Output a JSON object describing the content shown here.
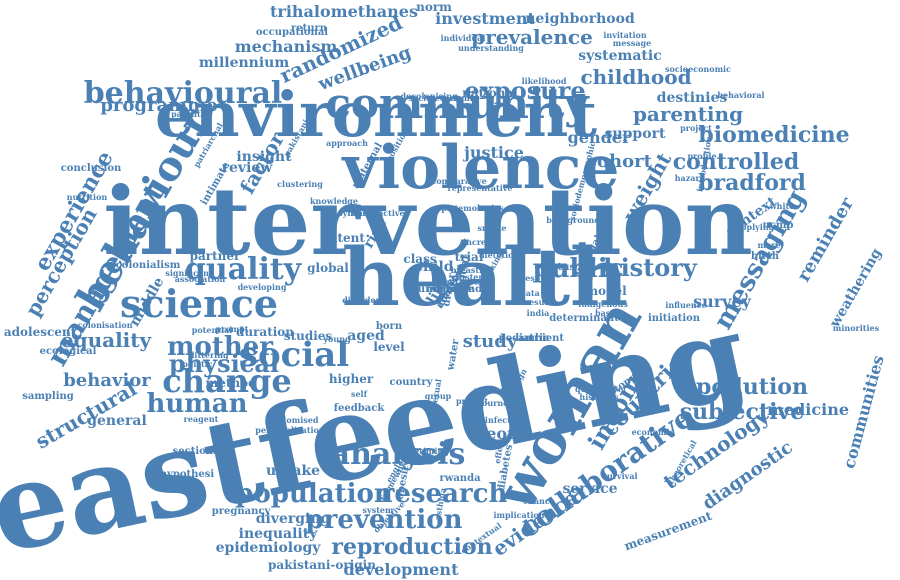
{
  "color": "#4a80b4",
  "words": [
    {
      "text": "breastfeeding",
      "rot": -12
    },
    {
      "text": "intervention",
      "rot": 0
    },
    {
      "text": "health",
      "rot": 0
    },
    {
      "text": "environment",
      "rot": 0
    },
    {
      "text": "violence",
      "rot": 0
    },
    {
      "text": "community",
      "rot": 0
    },
    {
      "text": "woman",
      "rot": -60
    },
    {
      "text": "behaviour",
      "rot": -60
    },
    {
      "text": "science",
      "rot": 0
    },
    {
      "text": "social",
      "rot": 0
    },
    {
      "text": "change",
      "rot": 0
    },
    {
      "text": "population",
      "rot": 0
    },
    {
      "text": "research",
      "rot": 0
    },
    {
      "text": "prevention",
      "rot": 0
    },
    {
      "text": "reproduction",
      "rot": 0
    },
    {
      "text": "analysis",
      "rot": 0
    },
    {
      "text": "collaborative",
      "rot": -35
    },
    {
      "text": "quality",
      "rot": 0
    },
    {
      "text": "management",
      "rot": -60
    },
    {
      "text": "behavioural",
      "rot": 0
    },
    {
      "text": "public",
      "rot": 0
    },
    {
      "text": "history",
      "rot": 0
    },
    {
      "text": "messaging",
      "rot": -60
    },
    {
      "text": "human",
      "rot": 0
    },
    {
      "text": "income",
      "rot": -60
    },
    {
      "text": "countrie",
      "rot": -45
    },
    {
      "text": "technology",
      "rot": -35
    },
    {
      "text": "mother",
      "rot": 0
    },
    {
      "text": "physical",
      "rot": 0
    },
    {
      "text": "subjective",
      "rot": 0
    },
    {
      "text": "exposure",
      "rot": 0
    },
    {
      "text": "pollution",
      "rot": 0
    },
    {
      "text": "biomedicine",
      "rot": 0
    },
    {
      "text": "controlled",
      "rot": 0
    },
    {
      "text": "bradford",
      "rot": 0
    },
    {
      "text": "childhood",
      "rot": 0
    },
    {
      "text": "parenting",
      "rot": 0
    },
    {
      "text": "randomized",
      "rot": -25
    },
    {
      "text": "wellbeing",
      "rot": -20
    },
    {
      "text": "prevalence",
      "rot": 0
    },
    {
      "text": "trihalomethanes",
      "rot": 0
    },
    {
      "text": "investment",
      "rot": 0
    },
    {
      "text": "neighborhood",
      "rot": 0
    },
    {
      "text": "mechanism",
      "rot": 0
    },
    {
      "text": "millennium",
      "rot": 0
    },
    {
      "text": "programme",
      "rot": 0
    },
    {
      "text": "experience",
      "rot": -60
    },
    {
      "text": "perception",
      "rot": -60
    },
    {
      "text": "equality",
      "rot": 0
    },
    {
      "text": "behavior",
      "rot": 0
    },
    {
      "text": "structural",
      "rot": -30
    },
    {
      "text": "general",
      "rot": 0
    },
    {
      "text": "uptake",
      "rot": 0
    },
    {
      "text": "diverging",
      "rot": 0
    },
    {
      "text": "inequality",
      "rot": 0
    },
    {
      "text": "epidemiology",
      "rot": 0
    },
    {
      "text": "development",
      "rot": 0
    },
    {
      "text": "pakistani-origin",
      "rot": 0
    },
    {
      "text": "evidence",
      "rot": -35
    },
    {
      "text": "service",
      "rot": 0
    },
    {
      "text": "diagnostic",
      "rot": -35
    },
    {
      "text": "measurement",
      "rot": -20
    },
    {
      "text": "communities",
      "rot": -75
    },
    {
      "text": "weathering",
      "rot": -60
    },
    {
      "text": "reminder",
      "rot": -60
    },
    {
      "text": "medicine",
      "rot": 0
    },
    {
      "text": "survey",
      "rot": 0
    },
    {
      "text": "study",
      "rot": 0
    },
    {
      "text": "theory",
      "rot": 0
    },
    {
      "text": "cohort",
      "rot": 0
    },
    {
      "text": "gender",
      "rot": 0
    },
    {
      "text": "weight",
      "rot": -60
    },
    {
      "text": "factor",
      "rot": -60
    },
    {
      "text": "insight",
      "rot": 0
    },
    {
      "text": "review",
      "rot": 0
    },
    {
      "text": "justice",
      "rot": 0
    },
    {
      "text": "support",
      "rot": 0
    },
    {
      "text": "systematic",
      "rot": 0
    },
    {
      "text": "national",
      "rot": 0
    },
    {
      "text": "destinies",
      "rot": 0
    },
    {
      "text": "context",
      "rot": -35
    },
    {
      "text": "latent",
      "rot": 0
    },
    {
      "text": "partner",
      "rot": 0
    },
    {
      "text": "global",
      "rot": 0
    },
    {
      "text": "class",
      "rot": 0
    },
    {
      "text": "child",
      "rot": 0
    },
    {
      "text": "trial",
      "rot": 0
    },
    {
      "text": "local",
      "rot": -80
    },
    {
      "text": "risk",
      "rot": -60
    },
    {
      "text": "life",
      "rot": -60
    },
    {
      "text": "aged",
      "rot": 0
    },
    {
      "text": "higher",
      "rot": 0
    },
    {
      "text": "level",
      "rot": 0
    },
    {
      "text": "method",
      "rot": 0
    },
    {
      "text": "studies",
      "rot": 0
    },
    {
      "text": "born",
      "rot": 0
    },
    {
      "text": "middle",
      "rot": -60
    },
    {
      "text": "sampling",
      "rot": 0
    },
    {
      "text": "adolescent",
      "rot": 0
    },
    {
      "text": "hypothesi",
      "rot": 0
    },
    {
      "text": "sectional",
      "rot": 0
    },
    {
      "text": "pregnancy",
      "rot": 0
    },
    {
      "text": "determinant",
      "rot": 0
    },
    {
      "text": "model",
      "rot": 0
    },
    {
      "text": "duration",
      "rot": 0
    },
    {
      "text": "rwanda",
      "rot": 0
    },
    {
      "text": "infection",
      "rot": 0
    },
    {
      "text": "design",
      "rot": -60
    },
    {
      "text": "primer",
      "rot": 0
    },
    {
      "text": "country",
      "rot": 0
    },
    {
      "text": "group",
      "rot": 0
    },
    {
      "text": "effect",
      "rot": -80
    },
    {
      "text": "diabetes",
      "rot": -80
    },
    {
      "text": "obesity",
      "rot": -80
    },
    {
      "text": "england",
      "rot": -60
    },
    {
      "text": "pediatric",
      "rot": 0
    },
    {
      "text": "ambient",
      "rot": 0
    },
    {
      "text": "norm",
      "rot": 0
    },
    {
      "text": "return",
      "rot": 0
    },
    {
      "text": "occupational",
      "rot": 0
    },
    {
      "text": "individual",
      "rot": 0
    },
    {
      "text": "understanding",
      "rot": 0
    },
    {
      "text": "invitation",
      "rot": 0
    },
    {
      "text": "message",
      "rot": 0
    },
    {
      "text": "socioeconomic",
      "rot": 0
    },
    {
      "text": "behavioral",
      "rot": 0
    },
    {
      "text": "colonisation",
      "rot": 0
    },
    {
      "text": "ecological",
      "rot": 0
    },
    {
      "text": "conclusion",
      "rot": 0
    },
    {
      "text": "intimate",
      "rot": -60
    },
    {
      "text": "patriarchal",
      "rot": -60
    },
    {
      "text": "clustering",
      "rot": 0
    },
    {
      "text": "approach",
      "rot": 0
    },
    {
      "text": "maternal",
      "rot": -60
    },
    {
      "text": "position",
      "rot": -60
    },
    {
      "text": "internal",
      "rot": -60
    },
    {
      "text": "increase",
      "rot": 0
    },
    {
      "text": "dietetic",
      "rot": 0
    },
    {
      "text": "smoke",
      "rot": 0
    },
    {
      "text": "drinking",
      "rot": -60
    },
    {
      "text": "cluster",
      "rot": 0
    },
    {
      "text": "status",
      "rot": 0
    },
    {
      "text": "test",
      "rot": 0
    },
    {
      "text": "data",
      "rot": 0
    },
    {
      "text": "result",
      "rot": 0
    },
    {
      "text": "india",
      "rot": 0
    },
    {
      "text": "birth",
      "rot": 0
    },
    {
      "text": "more",
      "rot": 0
    },
    {
      "text": "white",
      "rot": 0
    },
    {
      "text": "ncmp",
      "rot": 0
    },
    {
      "text": "minorities",
      "rot": 0
    },
    {
      "text": "initiation",
      "rot": 0
    },
    {
      "text": "influence",
      "rot": 0
    },
    {
      "text": "stopping",
      "rot": -35
    },
    {
      "text": "qualitative",
      "rot": 0
    },
    {
      "text": "histories",
      "rot": 0
    },
    {
      "text": "economic",
      "rot": 0
    },
    {
      "text": "theoretical",
      "rot": -60
    },
    {
      "text": "survival",
      "rot": 0
    },
    {
      "text": "implication",
      "rot": 0
    },
    {
      "text": "chance",
      "rot": 0
    },
    {
      "text": "contextual",
      "rot": -35
    },
    {
      "text": "objective",
      "rot": -45
    },
    {
      "text": "framework",
      "rot": -60
    },
    {
      "text": "feedback",
      "rot": 0
    },
    {
      "text": "personalization",
      "rot": 0
    },
    {
      "text": "randomised",
      "rot": 0
    },
    {
      "text": "reagent",
      "rot": 0
    },
    {
      "text": "logistic",
      "rot": 0
    },
    {
      "text": "littering",
      "rot": 0
    },
    {
      "text": "prompt",
      "rot": 0
    },
    {
      "text": "potential",
      "rot": 0
    },
    {
      "text": "developing",
      "rot": 0
    },
    {
      "text": "association",
      "rot": 0
    },
    {
      "text": "colonialism",
      "rot": 0
    },
    {
      "text": "significant",
      "rot": 0
    },
    {
      "text": "parental",
      "rot": 0
    },
    {
      "text": "nutrition",
      "rot": 0
    },
    {
      "text": "pakistani",
      "rot": -60
    },
    {
      "text": "knowledge",
      "rot": 0
    },
    {
      "text": "comparative",
      "rot": 0
    },
    {
      "text": "sociodemographic",
      "rot": -75
    },
    {
      "text": "hazard",
      "rot": 0
    },
    {
      "text": "introduction",
      "rot": -80
    },
    {
      "text": "profile",
      "rot": 0
    },
    {
      "text": "project",
      "rot": 0
    },
    {
      "text": "likelihood",
      "rot": 0
    },
    {
      "text": "decolonising",
      "rot": 0
    },
    {
      "text": "socio-economic",
      "rot": 0
    },
    {
      "text": "representative",
      "rot": 0
    },
    {
      "text": "epistemologies",
      "rot": 0
    },
    {
      "text": "breastfed",
      "rot": 0
    },
    {
      "text": "enhanced",
      "rot": 0
    },
    {
      "text": "young",
      "rot": 0
    },
    {
      "text": "self",
      "rot": 0
    },
    {
      "text": "water",
      "rot": -80
    },
    {
      "text": "sexual",
      "rot": -80
    },
    {
      "text": "timing",
      "rot": 0
    },
    {
      "text": "asthma",
      "rot": -80
    },
    {
      "text": "system",
      "rot": 0
    },
    {
      "text": "adult",
      "rot": -60
    },
    {
      "text": "predict",
      "rot": 0
    },
    {
      "text": "journey",
      "rot": 0
    },
    {
      "text": "based",
      "rot": 0
    },
    {
      "text": "applying",
      "rot": 0
    },
    {
      "text": "background",
      "rot": 0
    },
    {
      "text": "reproductive",
      "rot": 0
    },
    {
      "text": "synthesis",
      "rot": 0
    },
    {
      "text": "indigenous",
      "rot": 0
    },
    {
      "text": "disorder",
      "rot": 0
    },
    {
      "text": "control",
      "rot": -60
    },
    {
      "text": "understand",
      "rot": 0
    },
    {
      "text": "analyse",
      "rot": -60
    },
    {
      "text": "trait",
      "rot": 0
    },
    {
      "text": "measure",
      "rot": 0
    },
    {
      "text": "driver",
      "rot": -80
    },
    {
      "text": "crime",
      "rot": 0
    }
  ]
}
